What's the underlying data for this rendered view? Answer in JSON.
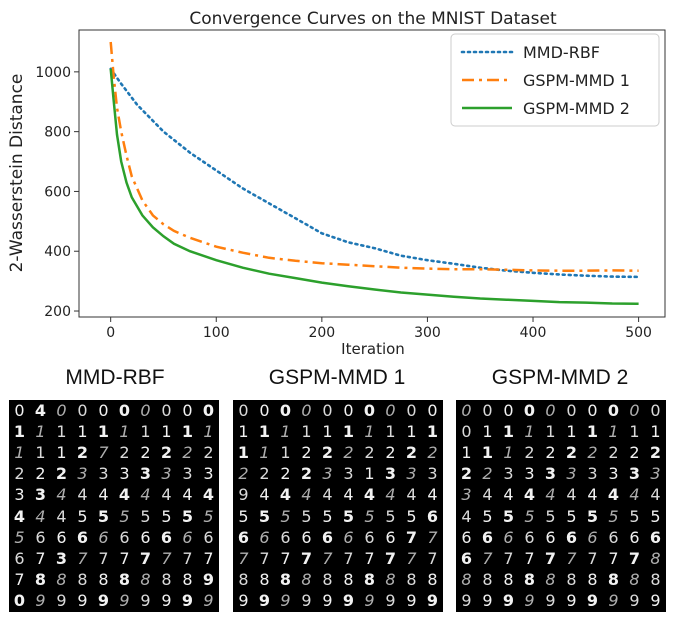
{
  "chart_data": {
    "type": "line",
    "title": "Convergence Curves on the MNIST Dataset",
    "xlabel": "Iteration",
    "ylabel": "2-Wasserstein Distance",
    "xlim": [
      -30,
      525
    ],
    "ylim": [
      180,
      1140
    ],
    "xticks": [
      0,
      100,
      200,
      300,
      400,
      500
    ],
    "yticks": [
      200,
      400,
      600,
      800,
      1000
    ],
    "grid": false,
    "legend_position": "top-right",
    "series": [
      {
        "name": "MMD-RBF",
        "color": "#1f77b4",
        "style": "dotted",
        "points": [
          [
            0,
            1010
          ],
          [
            10,
            960
          ],
          [
            25,
            890
          ],
          [
            50,
            800
          ],
          [
            75,
            730
          ],
          [
            100,
            670
          ],
          [
            125,
            610
          ],
          [
            150,
            560
          ],
          [
            175,
            510
          ],
          [
            200,
            460
          ],
          [
            225,
            430
          ],
          [
            250,
            410
          ],
          [
            275,
            385
          ],
          [
            300,
            370
          ],
          [
            325,
            358
          ],
          [
            350,
            345
          ],
          [
            375,
            335
          ],
          [
            400,
            328
          ],
          [
            425,
            322
          ],
          [
            450,
            318
          ],
          [
            475,
            315
          ],
          [
            500,
            314
          ]
        ]
      },
      {
        "name": "GSPM-MMD 1",
        "color": "#ff7f0e",
        "style": "dashdot",
        "points": [
          [
            0,
            1100
          ],
          [
            3,
            980
          ],
          [
            6,
            880
          ],
          [
            10,
            800
          ],
          [
            15,
            720
          ],
          [
            20,
            650
          ],
          [
            30,
            570
          ],
          [
            40,
            520
          ],
          [
            50,
            490
          ],
          [
            60,
            468
          ],
          [
            75,
            445
          ],
          [
            100,
            415
          ],
          [
            125,
            395
          ],
          [
            150,
            378
          ],
          [
            175,
            368
          ],
          [
            200,
            360
          ],
          [
            225,
            355
          ],
          [
            250,
            350
          ],
          [
            275,
            345
          ],
          [
            300,
            342
          ],
          [
            325,
            340
          ],
          [
            350,
            340
          ],
          [
            375,
            338
          ],
          [
            400,
            336
          ],
          [
            425,
            335
          ],
          [
            450,
            335
          ],
          [
            475,
            336
          ],
          [
            500,
            335
          ]
        ]
      },
      {
        "name": "GSPM-MMD 2",
        "color": "#2ca02c",
        "style": "solid",
        "points": [
          [
            0,
            1010
          ],
          [
            3,
            900
          ],
          [
            6,
            790
          ],
          [
            10,
            700
          ],
          [
            15,
            630
          ],
          [
            20,
            580
          ],
          [
            30,
            520
          ],
          [
            40,
            480
          ],
          [
            50,
            450
          ],
          [
            60,
            425
          ],
          [
            75,
            400
          ],
          [
            100,
            370
          ],
          [
            125,
            345
          ],
          [
            150,
            325
          ],
          [
            175,
            310
          ],
          [
            200,
            295
          ],
          [
            225,
            283
          ],
          [
            250,
            272
          ],
          [
            275,
            262
          ],
          [
            300,
            255
          ],
          [
            325,
            248
          ],
          [
            350,
            242
          ],
          [
            375,
            238
          ],
          [
            400,
            234
          ],
          [
            425,
            230
          ],
          [
            450,
            228
          ],
          [
            475,
            225
          ],
          [
            500,
            224
          ]
        ]
      }
    ]
  },
  "samples": {
    "panels": [
      {
        "title": "MMD-RBF",
        "rows": [
          "0400000000",
          "1111111111",
          "1112722222",
          "2223333333",
          "3344444444",
          "4445555555",
          "5666666666",
          "6737777777",
          "7888888889",
          "0999999999"
        ]
      },
      {
        "title": "GSPM-MMD 1",
        "rows": [
          "0000000000",
          "1111111111",
          "1112222222",
          "2222331333",
          "9444444444",
          "5555555556",
          "6666666677",
          "7777777777",
          "8888888888",
          "9999999999"
        ]
      },
      {
        "title": "GSPM-MMD 2",
        "rows": [
          "0000000000",
          "0111111111",
          "1112222222",
          "2233333333",
          "3444444444",
          "4555555555",
          "6666666666",
          "6777777778",
          "8888888888",
          "9999999999"
        ]
      }
    ]
  }
}
